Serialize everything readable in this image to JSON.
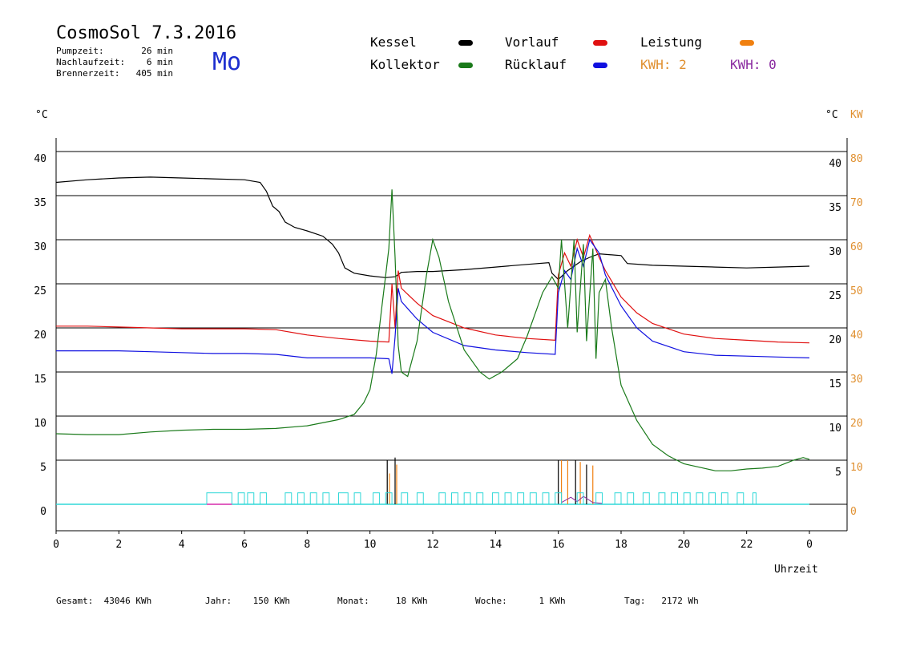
{
  "header": {
    "title": "CosmoSol 7.3.2016",
    "day": "Mo",
    "info": [
      {
        "label": "Pumpzeit:",
        "value": "26 min"
      },
      {
        "label": "Nachlaufzeit:",
        "value": "6 min"
      },
      {
        "label": "Brennerzeit:",
        "value": "405 min"
      }
    ]
  },
  "legend": {
    "kessel": "Kessel",
    "vorlauf": "Vorlauf",
    "leistung": "Leistung",
    "kollektor": "Kollektor",
    "ruecklauf": "Rücklauf",
    "kwh1": "KWH: 2",
    "kwh2": "KWH: 0"
  },
  "colors": {
    "kessel": "#000000",
    "vorlauf": "#e01010",
    "ruecklauf": "#1010e0",
    "kollektor": "#1a7a1a",
    "leistung": "#f08010",
    "kwh_orange": "#e09030",
    "kwh_purple": "#8a2aa0",
    "cyan": "#30d8d8"
  },
  "footer": [
    {
      "label": "Gesamt:",
      "value": "43046 KWh"
    },
    {
      "label": "Jahr:",
      "value": "150 KWh"
    },
    {
      "label": "Monat:",
      "value": "18 KWh"
    },
    {
      "label": "Woche:",
      "value": "1 KWh"
    },
    {
      "label": "Tag:",
      "value": "2172 Wh"
    }
  ],
  "chart_data": {
    "type": "line",
    "title": "CosmoSol 7.3.2016",
    "xlabel": "Uhrzeit",
    "ylabel_left": "°C",
    "ylabel_right": "°C",
    "ylabel_right2": "KW",
    "xlim": [
      0,
      24
    ],
    "ylim": [
      0,
      40
    ],
    "grid": true,
    "x_ticks": [
      "0",
      "2",
      "4",
      "6",
      "8",
      "10",
      "12",
      "14",
      "16",
      "18",
      "20",
      "22",
      "0"
    ],
    "y_ticks_left": [
      "0",
      "5",
      "10",
      "15",
      "20",
      "25",
      "30",
      "35",
      "40"
    ],
    "y_ticks_right": [
      "5",
      "10",
      "15",
      "20",
      "25",
      "30",
      "35",
      "40"
    ],
    "y_ticks_kw": [
      "0",
      "10",
      "20",
      "30",
      "40",
      "50",
      "60",
      "70",
      "80"
    ],
    "series": [
      {
        "name": "Kessel",
        "key": "kessel",
        "points": [
          [
            0,
            36.5
          ],
          [
            1,
            36.8
          ],
          [
            2,
            37.0
          ],
          [
            3,
            37.1
          ],
          [
            4,
            37.0
          ],
          [
            5,
            36.9
          ],
          [
            6,
            36.8
          ],
          [
            6.5,
            36.5
          ],
          [
            6.7,
            35.5
          ],
          [
            6.9,
            33.8
          ],
          [
            7.1,
            33.2
          ],
          [
            7.3,
            32.0
          ],
          [
            7.6,
            31.4
          ],
          [
            8,
            31.0
          ],
          [
            8.5,
            30.4
          ],
          [
            8.8,
            29.5
          ],
          [
            9,
            28.5
          ],
          [
            9.2,
            26.8
          ],
          [
            9.5,
            26.2
          ],
          [
            10,
            25.9
          ],
          [
            10.5,
            25.7
          ],
          [
            10.8,
            25.8
          ],
          [
            11,
            26.3
          ],
          [
            11.5,
            26.4
          ],
          [
            12,
            26.4
          ],
          [
            13,
            26.6
          ],
          [
            14,
            26.9
          ],
          [
            15,
            27.2
          ],
          [
            15.7,
            27.4
          ],
          [
            15.8,
            26.2
          ],
          [
            16,
            25.5
          ],
          [
            16.3,
            26.5
          ],
          [
            16.7,
            27.5
          ],
          [
            17,
            28.0
          ],
          [
            17.3,
            28.4
          ],
          [
            18,
            28.2
          ],
          [
            18.2,
            27.3
          ],
          [
            19,
            27.1
          ],
          [
            20,
            27.0
          ],
          [
            21,
            26.9
          ],
          [
            22,
            26.8
          ],
          [
            23,
            26.9
          ],
          [
            24,
            27.0
          ]
        ]
      },
      {
        "name": "Vorlauf",
        "key": "vorlauf",
        "points": [
          [
            0,
            20.2
          ],
          [
            1,
            20.2
          ],
          [
            2,
            20.1
          ],
          [
            3,
            20.0
          ],
          [
            4,
            19.9
          ],
          [
            5,
            19.9
          ],
          [
            6,
            19.9
          ],
          [
            7,
            19.8
          ],
          [
            8,
            19.2
          ],
          [
            9,
            18.8
          ],
          [
            10,
            18.5
          ],
          [
            10.6,
            18.4
          ],
          [
            10.7,
            25.0
          ],
          [
            10.8,
            20.0
          ],
          [
            10.9,
            26.5
          ],
          [
            11,
            24.5
          ],
          [
            11.5,
            22.8
          ],
          [
            12,
            21.4
          ],
          [
            13,
            20.0
          ],
          [
            14,
            19.2
          ],
          [
            15,
            18.8
          ],
          [
            15.9,
            18.6
          ],
          [
            16,
            26.0
          ],
          [
            16.2,
            28.5
          ],
          [
            16.4,
            27.0
          ],
          [
            16.6,
            30.0
          ],
          [
            16.8,
            28.0
          ],
          [
            17,
            30.5
          ],
          [
            17.3,
            28.0
          ],
          [
            17.5,
            26.5
          ],
          [
            18,
            23.5
          ],
          [
            18.5,
            21.7
          ],
          [
            19,
            20.5
          ],
          [
            20,
            19.3
          ],
          [
            21,
            18.8
          ],
          [
            22,
            18.6
          ],
          [
            23,
            18.4
          ],
          [
            24,
            18.3
          ]
        ]
      },
      {
        "name": "Rücklauf",
        "key": "ruecklauf",
        "points": [
          [
            0,
            17.4
          ],
          [
            1,
            17.4
          ],
          [
            2,
            17.4
          ],
          [
            3,
            17.3
          ],
          [
            4,
            17.2
          ],
          [
            5,
            17.1
          ],
          [
            6,
            17.1
          ],
          [
            7,
            17.0
          ],
          [
            8,
            16.6
          ],
          [
            9,
            16.6
          ],
          [
            10,
            16.6
          ],
          [
            10.6,
            16.5
          ],
          [
            10.7,
            14.8
          ],
          [
            10.8,
            19.0
          ],
          [
            10.9,
            24.5
          ],
          [
            11,
            23.0
          ],
          [
            11.5,
            21.0
          ],
          [
            12,
            19.5
          ],
          [
            13,
            18.0
          ],
          [
            14,
            17.5
          ],
          [
            15,
            17.2
          ],
          [
            15.9,
            17.0
          ],
          [
            16,
            24.0
          ],
          [
            16.2,
            26.5
          ],
          [
            16.4,
            25.5
          ],
          [
            16.6,
            29.0
          ],
          [
            16.8,
            27.0
          ],
          [
            17,
            30.0
          ],
          [
            17.3,
            28.5
          ],
          [
            17.5,
            26.0
          ],
          [
            18,
            22.5
          ],
          [
            18.5,
            20.0
          ],
          [
            19,
            18.5
          ],
          [
            20,
            17.3
          ],
          [
            21,
            16.9
          ],
          [
            22,
            16.8
          ],
          [
            23,
            16.7
          ],
          [
            24,
            16.6
          ]
        ]
      },
      {
        "name": "Kollektor",
        "key": "kollektor",
        "points": [
          [
            0,
            8.0
          ],
          [
            1,
            7.9
          ],
          [
            2,
            7.9
          ],
          [
            3,
            8.2
          ],
          [
            4,
            8.4
          ],
          [
            5,
            8.5
          ],
          [
            6,
            8.5
          ],
          [
            7,
            8.6
          ],
          [
            8,
            8.9
          ],
          [
            9,
            9.6
          ],
          [
            9.5,
            10.2
          ],
          [
            9.8,
            11.5
          ],
          [
            10,
            13.0
          ],
          [
            10.2,
            17.0
          ],
          [
            10.4,
            23.0
          ],
          [
            10.5,
            26.0
          ],
          [
            10.6,
            29.0
          ],
          [
            10.7,
            35.7
          ],
          [
            10.8,
            28.0
          ],
          [
            10.9,
            18.0
          ],
          [
            11,
            15.0
          ],
          [
            11.2,
            14.5
          ],
          [
            11.5,
            18.5
          ],
          [
            11.8,
            26.0
          ],
          [
            12,
            30.0
          ],
          [
            12.2,
            28.0
          ],
          [
            12.5,
            23.0
          ],
          [
            13,
            17.5
          ],
          [
            13.5,
            15.0
          ],
          [
            13.8,
            14.2
          ],
          [
            14.2,
            15.0
          ],
          [
            14.7,
            16.5
          ],
          [
            15,
            19.0
          ],
          [
            15.5,
            24.0
          ],
          [
            15.8,
            25.8
          ],
          [
            16,
            24.5
          ],
          [
            16.1,
            30.0
          ],
          [
            16.3,
            20.0
          ],
          [
            16.5,
            30.0
          ],
          [
            16.6,
            19.5
          ],
          [
            16.8,
            29.5
          ],
          [
            16.9,
            18.5
          ],
          [
            17.1,
            29.0
          ],
          [
            17.2,
            16.5
          ],
          [
            17.3,
            24.0
          ],
          [
            17.5,
            25.5
          ],
          [
            17.7,
            20.0
          ],
          [
            18,
            13.5
          ],
          [
            18.5,
            9.5
          ],
          [
            19,
            6.8
          ],
          [
            19.5,
            5.5
          ],
          [
            20,
            4.6
          ],
          [
            20.5,
            4.2
          ],
          [
            21,
            3.8
          ],
          [
            21.5,
            3.8
          ],
          [
            22,
            4.0
          ],
          [
            22.5,
            4.1
          ],
          [
            23,
            4.3
          ],
          [
            23.5,
            5.0
          ],
          [
            23.8,
            5.3
          ],
          [
            24,
            5.1
          ]
        ]
      }
    ]
  }
}
